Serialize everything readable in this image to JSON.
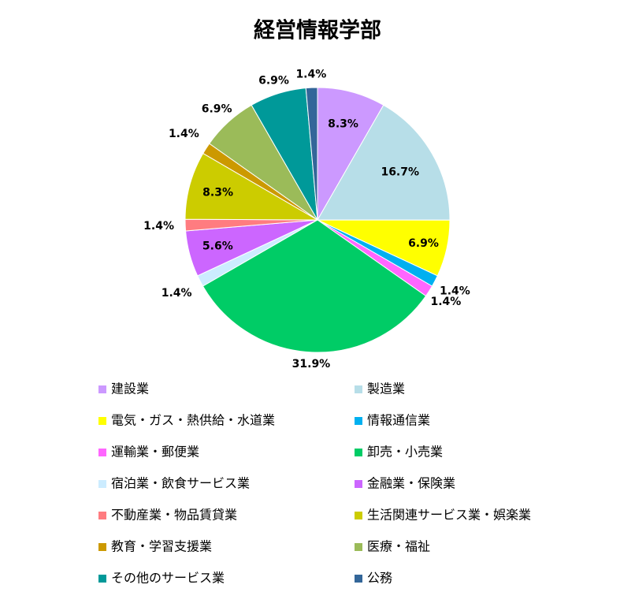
{
  "chart_data": {
    "type": "pie",
    "title": "経営情報学部",
    "categories": [
      "建設業",
      "製造業",
      "電気・ガス・熱供給・水道業",
      "情報通信業",
      "運輸業・郵便業",
      "卸売・小売業",
      "宿泊業・飲食サービス業",
      "金融業・保険業",
      "不動産業・物品賃貸業",
      "生活関連サービス業・娯楽業",
      "教育・学習支援業",
      "医療・福祉",
      "その他のサービス業",
      "公務"
    ],
    "values": [
      8.3,
      16.7,
      6.9,
      1.4,
      1.4,
      31.9,
      1.4,
      5.6,
      1.4,
      8.3,
      1.4,
      6.9,
      6.9,
      1.4
    ],
    "value_labels": [
      "8.3%",
      "16.7%",
      "6.9%",
      "1.4%",
      "1.4%",
      "31.9%",
      "1.4%",
      "5.6%",
      "1.4%",
      "8.3%",
      "1.4%",
      "6.9%",
      "6.9%",
      "1.4%"
    ],
    "colors": [
      "#cc99ff",
      "#b7dee8",
      "#ffff00",
      "#00b0f0",
      "#ff66ff",
      "#00cc66",
      "#ccecff",
      "#cc66ff",
      "#ff7c80",
      "#cccc00",
      "#cc9900",
      "#9bbb59",
      "#009999",
      "#336699"
    ],
    "legend": "bottom"
  }
}
